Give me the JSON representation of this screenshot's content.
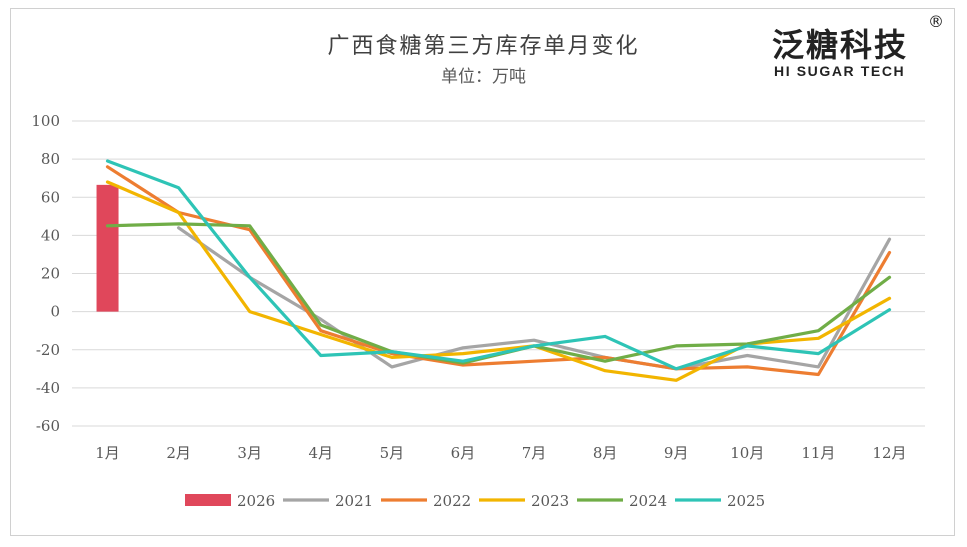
{
  "chart_data": {
    "type": "line",
    "title": "广西食糖第三方库存单月变化",
    "subtitle": "单位：万吨",
    "categories": [
      "1月",
      "2月",
      "3月",
      "4月",
      "5月",
      "6月",
      "7月",
      "8月",
      "9月",
      "10月",
      "11月",
      "12月"
    ],
    "ylim": [
      -60,
      100
    ],
    "yticks": [
      100,
      80,
      60,
      40,
      20,
      0,
      -20,
      -40,
      -60
    ],
    "grid": true,
    "legend_position": "bottom",
    "series": [
      {
        "name": "2026",
        "kind": "bar",
        "color": "#e0475b",
        "values": [
          66.5,
          null,
          null,
          null,
          null,
          null,
          null,
          null,
          null,
          null,
          null,
          null
        ]
      },
      {
        "name": "2021",
        "kind": "line",
        "color": "#a5a5a5",
        "values": [
          null,
          44,
          18,
          -4,
          -29,
          -19,
          -15,
          -24,
          -30,
          -23,
          -29,
          38
        ]
      },
      {
        "name": "2022",
        "kind": "line",
        "color": "#ed7d31",
        "values": [
          76,
          52,
          43,
          -10,
          -22,
          -28,
          -26,
          -24,
          -30,
          -29,
          -33,
          31
        ]
      },
      {
        "name": "2023",
        "kind": "line",
        "color": "#f2b500",
        "values": [
          68,
          52,
          0,
          -12,
          -24,
          -22,
          -18,
          -31,
          -36,
          -17,
          -14,
          7
        ]
      },
      {
        "name": "2024",
        "kind": "line",
        "color": "#70ad47",
        "values": [
          45,
          46,
          45,
          -7,
          -21,
          -27,
          -18,
          -26,
          -18,
          -17,
          -10,
          18
        ]
      },
      {
        "name": "2025",
        "kind": "line",
        "color": "#2ec4b6",
        "values": [
          79,
          65,
          18,
          -23,
          -21,
          -26,
          -18,
          -13,
          -30,
          -18,
          -22,
          1
        ]
      }
    ]
  },
  "logo": {
    "text_cn": "泛糖科技",
    "reg_mark": "®",
    "text_en": "HI SUGAR TECH"
  }
}
